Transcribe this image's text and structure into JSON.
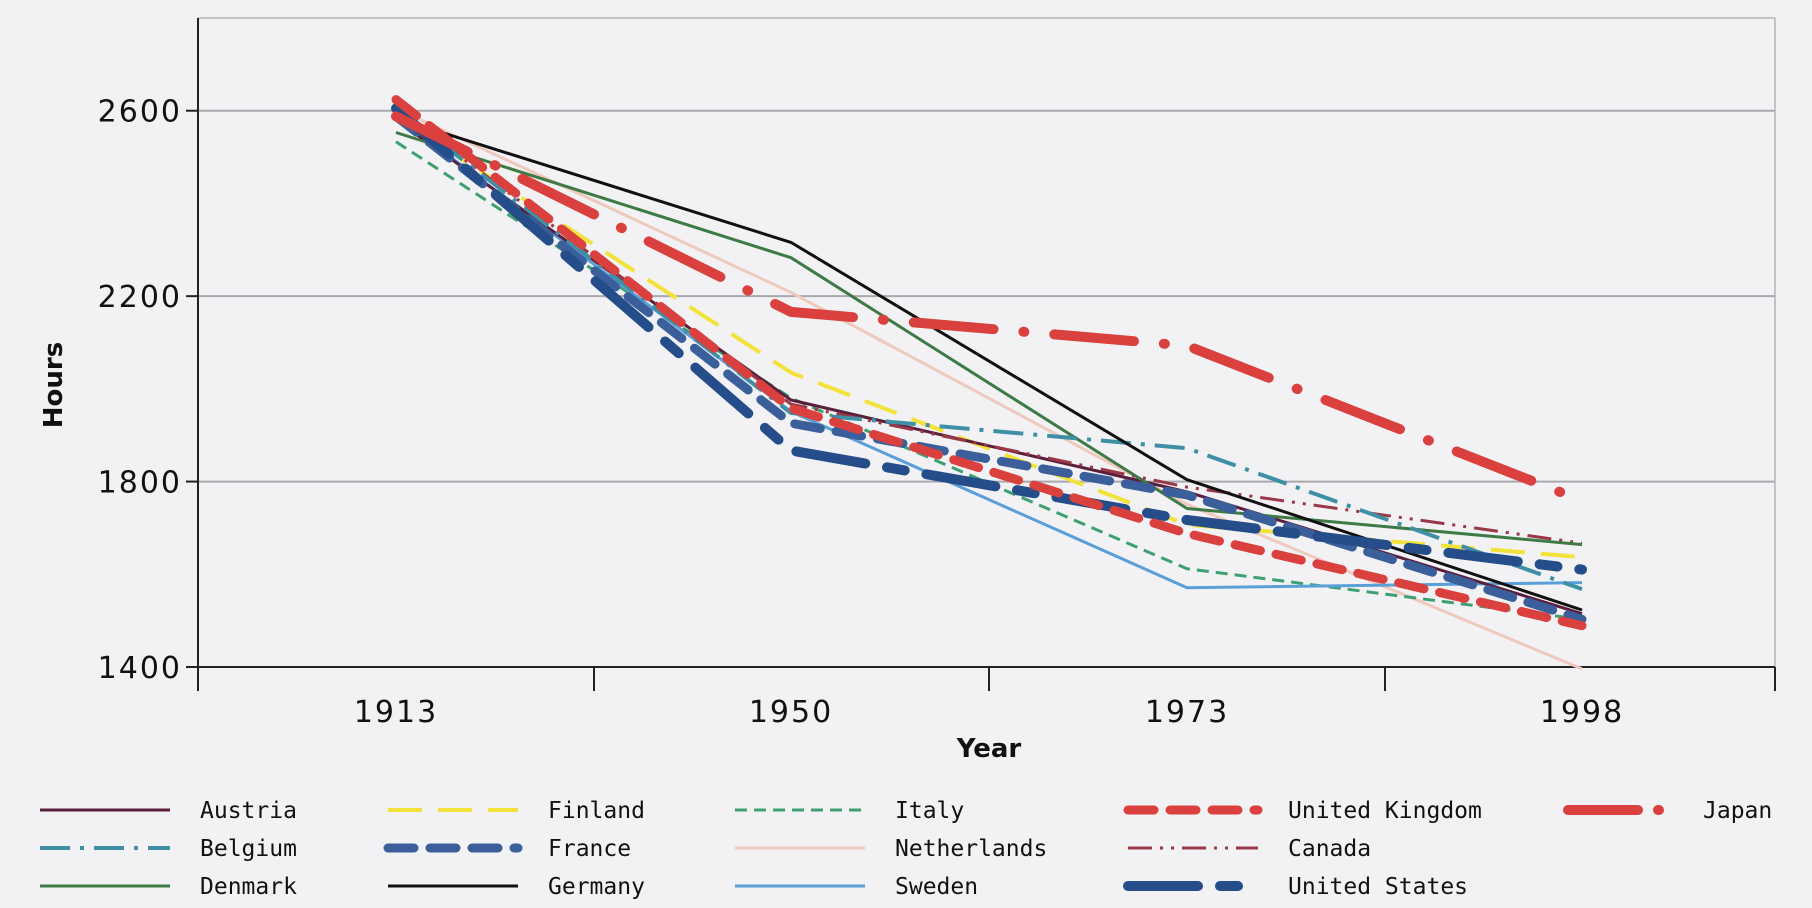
{
  "chart_data": {
    "type": "line",
    "title": "",
    "xlabel": "Year",
    "ylabel": "Hours",
    "categories": [
      "1913",
      "1950",
      "1973",
      "1998"
    ],
    "ylim": [
      1400,
      2800
    ],
    "yticks": [
      1400,
      1800,
      2200,
      2600
    ],
    "grid": "horizontal",
    "legend_position": "bottom",
    "series": [
      {
        "name": "Austria",
        "values": [
          2580,
          1976,
          1778,
          1515
        ],
        "color": "#5a1f3c",
        "style": "solid"
      },
      {
        "name": "Belgium",
        "values": [
          2605,
          1948,
          1872,
          1568
        ],
        "color": "#3f8fa6",
        "style": "dashdot"
      },
      {
        "name": "Denmark",
        "values": [
          2553,
          2283,
          1742,
          1664
        ],
        "color": "#3e7a45",
        "style": "solid"
      },
      {
        "name": "Finland",
        "values": [
          2588,
          2035,
          1707,
          1637
        ],
        "color": "#f3e23a",
        "style": "dash"
      },
      {
        "name": "France",
        "values": [
          2588,
          1926,
          1771,
          1503
        ],
        "color": "#3a5f9a",
        "style": "heavydash"
      },
      {
        "name": "Germany",
        "values": [
          2584,
          2316,
          1804,
          1523
        ],
        "color": "#111111",
        "style": "solid"
      },
      {
        "name": "Italy",
        "values": [
          2533,
          1980,
          1612,
          1503
        ],
        "color": "#3ea070",
        "style": "shortdash"
      },
      {
        "name": "Netherlands",
        "values": [
          2605,
          2208,
          1751,
          1396
        ],
        "color": "#efc9bd",
        "style": "solid"
      },
      {
        "name": "Sweden",
        "values": [
          2588,
          1951,
          1571,
          1582
        ],
        "color": "#5a9fd8",
        "style": "solid"
      },
      {
        "name": "United Kingdom",
        "values": [
          2624,
          1958,
          1688,
          1489
        ],
        "color": "#d9403e",
        "style": "heavydash"
      },
      {
        "name": "Canada",
        "values": [
          2605,
          1967,
          1788,
          1667
        ],
        "color": "#9b3848",
        "style": "dashdotdot"
      },
      {
        "name": "United States",
        "values": [
          2605,
          1867,
          1717,
          1610
        ],
        "color": "#244d8a",
        "style": "longdash"
      },
      {
        "name": "Japan",
        "values": [
          2588,
          2166,
          2093,
          1759
        ],
        "color": "#d9403e",
        "style": "japan"
      }
    ],
    "legend_layout": [
      [
        "Austria",
        "Finland",
        "Italy",
        "United Kingdom",
        "Japan"
      ],
      [
        "Belgium",
        "France",
        "Netherlands",
        "Canada"
      ],
      [
        "Denmark",
        "Germany",
        "Sweden",
        "United States"
      ]
    ]
  }
}
